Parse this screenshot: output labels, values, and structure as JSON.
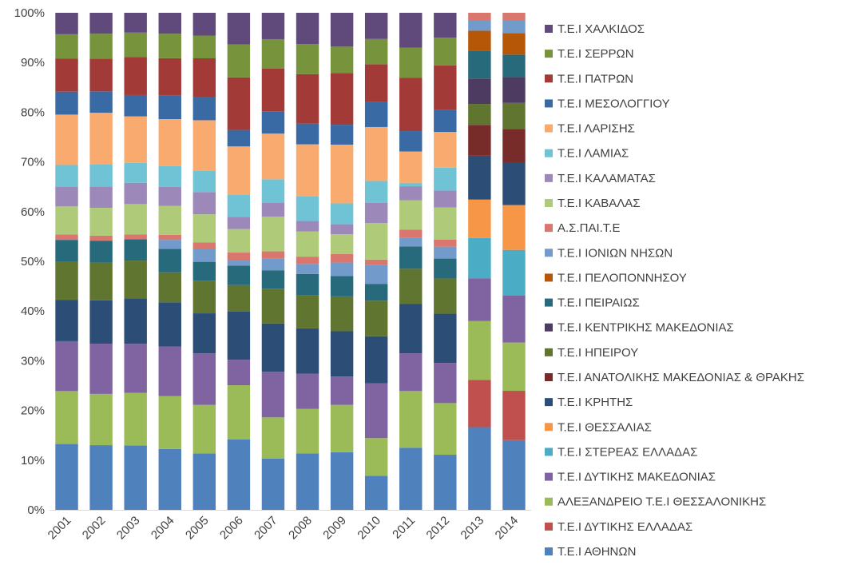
{
  "chart_data": {
    "type": "bar",
    "stacked": "percent",
    "title": "",
    "xlabel": "",
    "ylabel": "",
    "ylim": [
      0,
      100
    ],
    "y_ticks": [
      "0%",
      "10%",
      "20%",
      "30%",
      "40%",
      "50%",
      "60%",
      "70%",
      "80%",
      "90%",
      "100%"
    ],
    "grid": false,
    "legend_position": "right",
    "categories": [
      "2001",
      "2002",
      "2003",
      "2004",
      "2005",
      "2006",
      "2007",
      "2008",
      "2009",
      "2010",
      "2011",
      "2012",
      "2013",
      "2014"
    ],
    "series": [
      {
        "name": "Τ.Ε.Ι ΑΘΗΝΩΝ",
        "color": "#4F81BD",
        "values": [
          13.2,
          13.0,
          13.0,
          12.2,
          11.4,
          14.1,
          10.3,
          11.4,
          11.6,
          6.9,
          12.5,
          11.1,
          16.6,
          14.0
        ]
      },
      {
        "name": "Τ.Ε.Ι ΔΥΤΙΚΗΣ ΕΛΛΑΔΑΣ",
        "color": "#C0504D",
        "values": [
          0,
          0,
          0,
          0,
          0,
          0,
          0,
          0,
          0,
          0,
          0,
          0,
          9.5,
          9.9
        ]
      },
      {
        "name": "ΑΛΕΞΑΝΔΡΕΙΟ Τ.Ε.Ι ΘΕΣΣΑΛΟΝΙΚΗΣ",
        "color": "#9BBB59",
        "values": [
          10.6,
          10.3,
          10.6,
          10.6,
          9.8,
          10.8,
          8.3,
          9.0,
          9.5,
          7.6,
          11.4,
          10.4,
          11.8,
          9.7
        ]
      },
      {
        "name": "Τ.Ε.Ι ΔΥΤΙΚΗΣ ΜΑΚΕΔΟΝΙΑΣ",
        "color": "#8064A2",
        "values": [
          10.0,
          10.1,
          9.9,
          9.9,
          10.4,
          5.1,
          9.2,
          7.1,
          5.7,
          11.1,
          7.6,
          8.1,
          8.6,
          9.4
        ]
      },
      {
        "name": "Τ.Ε.Ι ΣΤΕΡΕΑΣ ΕΛΛΑΔΑΣ",
        "color": "#4BACC6",
        "values": [
          0,
          0,
          0,
          0,
          0,
          0,
          0,
          0,
          0,
          0,
          0,
          0,
          8.1,
          9.2
        ]
      },
      {
        "name": "Τ.Ε.Ι ΘΕΣΣΑΛΙΑΣ",
        "color": "#F79646",
        "values": [
          0,
          0,
          0,
          0,
          0,
          0,
          0,
          0,
          0,
          0,
          0,
          0,
          7.7,
          9.0
        ]
      },
      {
        "name": "Τ.Ε.Ι ΚΡΗΤΗΣ",
        "color": "#2C4D75",
        "values": [
          8.3,
          8.7,
          9.2,
          8.9,
          8.1,
          9.6,
          9.7,
          9.2,
          9.1,
          9.5,
          9.9,
          9.9,
          8.8,
          8.6
        ]
      },
      {
        "name": "Τ.Ε.Ι ΑΝΑΤΟΛΙΚΗΣ ΜΑΚΕΔΟΝΙΑΣ & ΘΡΑΚΗΣ",
        "color": "#772C2A",
        "values": [
          0,
          0,
          0,
          0,
          0,
          0,
          0,
          0,
          0,
          0,
          0,
          0,
          6.2,
          6.7
        ]
      },
      {
        "name": "Τ.Ε.Ι ΗΠΕΙΡΟΥ",
        "color": "#5F7530",
        "values": [
          7.6,
          7.6,
          7.6,
          6.0,
          6.6,
          5.3,
          7.0,
          6.7,
          7.0,
          7.2,
          7.1,
          7.1,
          4.2,
          5.2
        ]
      },
      {
        "name": "Τ.Ε.Ι ΚΕΝΤΡΙΚΗΣ ΜΑΚΕΔΟΝΙΑΣ",
        "color": "#4D3B62",
        "values": [
          0,
          0,
          0,
          0,
          0,
          0,
          0,
          0,
          0,
          0,
          0,
          0,
          5.1,
          5.2
        ]
      },
      {
        "name": "Τ.Ε.Ι ΠΕΙΡΑΙΩΣ",
        "color": "#276A7C",
        "values": [
          4.4,
          4.4,
          4.3,
          4.7,
          3.8,
          3.9,
          3.7,
          4.3,
          4.1,
          3.4,
          4.5,
          4.0,
          5.6,
          4.5
        ]
      },
      {
        "name": "Τ.Ε.Ι ΠΕΛΟΠΟΝΝΗΣΟΥ",
        "color": "#B65708",
        "values": [
          0,
          0,
          0,
          0,
          0,
          0,
          0,
          0,
          0,
          0,
          0,
          0,
          4.0,
          4.3
        ]
      },
      {
        "name": "Τ.Ε.Ι ΙΟΝΙΩΝ ΝΗΣΩΝ",
        "color": "#729ACA",
        "values": [
          0,
          0,
          0,
          1.8,
          2.6,
          1.0,
          2.4,
          2.0,
          2.7,
          3.8,
          1.8,
          2.4,
          2.0,
          2.5
        ]
      },
      {
        "name": "Α.Σ.ΠΑΙ.Τ.Ε",
        "color": "#D9776F",
        "values": [
          1.1,
          1.0,
          1.0,
          1.0,
          1.3,
          1.6,
          1.4,
          1.5,
          1.7,
          1.1,
          1.6,
          1.4,
          1.6,
          1.6
        ]
      },
      {
        "name": "Τ.Ε.Ι ΚΑΒΑΛΑΣ",
        "color": "#AFCB7A",
        "values": [
          5.6,
          5.6,
          6.1,
          5.8,
          5.7,
          4.7,
          7.0,
          5.1,
          4.0,
          7.4,
          5.9,
          6.5,
          0,
          0
        ]
      },
      {
        "name": "Τ.Ε.Ι ΚΑΛΑΜΑΤΑΣ",
        "color": "#9C89BA",
        "values": [
          4.0,
          4.3,
          4.3,
          3.8,
          4.5,
          2.4,
          2.8,
          2.1,
          2.0,
          4.1,
          2.8,
          3.4,
          0,
          0
        ]
      },
      {
        "name": "Τ.Ε.Ι ΛΑΜΙΑΣ",
        "color": "#6FC3D5",
        "values": [
          4.3,
          4.5,
          4.0,
          4.2,
          4.3,
          4.4,
          4.7,
          5.0,
          4.2,
          4.4,
          0.7,
          4.6,
          0,
          0
        ]
      },
      {
        "name": "Τ.Ε.Ι ΛΑΡΙΣΗΣ",
        "color": "#F9AA6E",
        "values": [
          10.1,
          10.3,
          9.4,
          9.4,
          10.2,
          9.7,
          9.2,
          10.5,
          11.8,
          10.9,
          6.3,
          7.2,
          0,
          0
        ]
      },
      {
        "name": "Τ.Ε.Ι ΜΕΣΟΛΟΓΓΙΟΥ",
        "color": "#3A6AA3",
        "values": [
          4.6,
          4.3,
          4.3,
          4.7,
          4.6,
          3.3,
          4.5,
          4.2,
          4.0,
          5.1,
          4.1,
          4.4,
          0,
          0
        ]
      },
      {
        "name": "Τ.Ε.Ι ΠΑΤΡΩΝ",
        "color": "#A23B38",
        "values": [
          6.6,
          6.6,
          7.7,
          7.5,
          7.9,
          10.5,
          8.6,
          10.0,
          10.4,
          7.6,
          10.7,
          9.0,
          0,
          0
        ]
      },
      {
        "name": "Τ.Ε.Ι ΣΕΡΡΩΝ",
        "color": "#77933C",
        "values": [
          4.9,
          5.0,
          4.9,
          4.9,
          4.6,
          6.6,
          5.9,
          6.1,
          5.3,
          5.1,
          6.1,
          5.6,
          0,
          0
        ]
      },
      {
        "name": "Τ.Ε.Ι ΧΑΛΚΙΔΟΣ",
        "color": "#604A7B",
        "values": [
          4.3,
          4.2,
          4.0,
          4.2,
          4.6,
          6.3,
          5.3,
          6.3,
          6.8,
          5.3,
          7.0,
          5.0,
          0,
          0
        ]
      }
    ]
  }
}
